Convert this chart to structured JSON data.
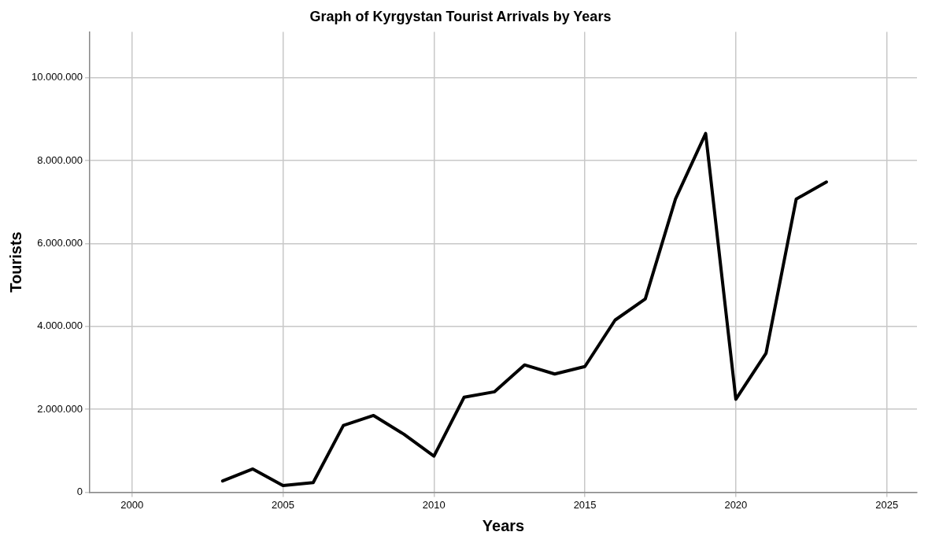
{
  "chart_data": {
    "type": "line",
    "title": "Graph of Kyrgystan Tourist Arrivals by Years",
    "xlabel": "Years",
    "ylabel": "Tourists",
    "x": [
      2003,
      2004,
      2005,
      2006,
      2007,
      2008,
      2009,
      2010,
      2011,
      2012,
      2013,
      2014,
      2015,
      2016,
      2017,
      2018,
      2019,
      2020,
      2021,
      2022,
      2023
    ],
    "series": [
      {
        "color": "#000000",
        "values": [
          270000,
          560000,
          160000,
          230000,
          1610000,
          1850000,
          1400000,
          870000,
          2290000,
          2420000,
          3070000,
          2850000,
          3030000,
          4150000,
          4660000,
          7070000,
          8650000,
          2240000,
          3350000,
          7070000,
          7480000
        ]
      }
    ],
    "xlim": [
      1998.6,
      2026
    ],
    "xticks": [
      2000,
      2005,
      2010,
      2015,
      2020,
      2025
    ],
    "ylim": [
      0,
      11100000
    ],
    "yticks": [
      0,
      {
        "value": 2000000,
        "label": "2.000.000"
      },
      {
        "value": 4000000,
        "label": "4.000.000"
      },
      {
        "value": 6000000,
        "label": "6.000.000"
      },
      {
        "value": 8000000,
        "label": "8.000.000"
      },
      {
        "value": 10000000,
        "label": "10.000.000"
      }
    ],
    "grid": true,
    "legend": false,
    "marker": "none",
    "line_style": "solid"
  }
}
